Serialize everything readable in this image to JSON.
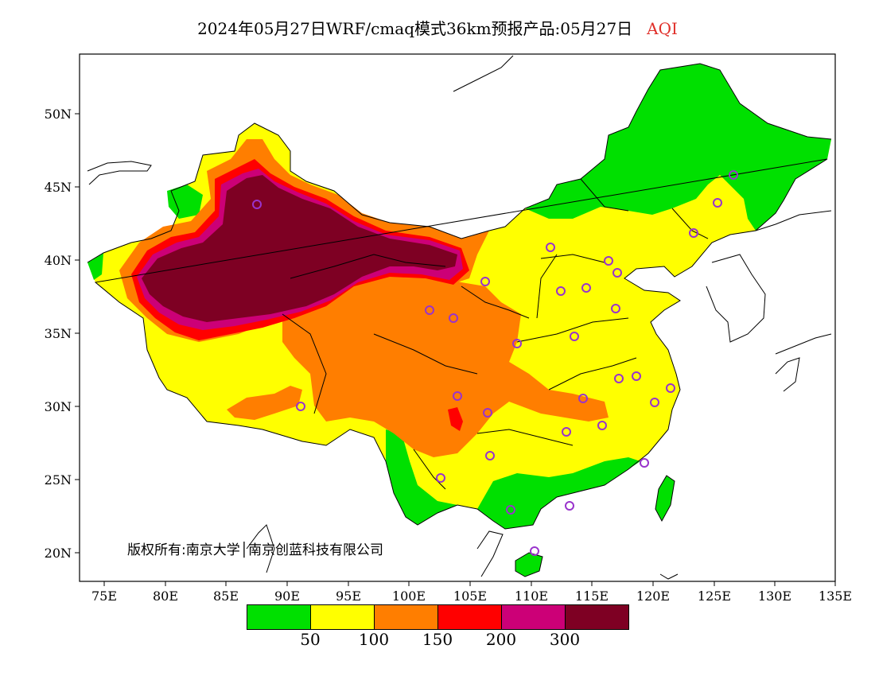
{
  "title": {
    "main": "2024年05月27日WRF/cmaq模式36km预报产品:05月27日",
    "variable": "AQI"
  },
  "copyright": "版权所有:南京大学│南京创蓝科技有限公司",
  "axes": {
    "x_ticks": [
      "75E",
      "80E",
      "85E",
      "90E",
      "95E",
      "100E",
      "105E",
      "110E",
      "115E",
      "120E",
      "125E",
      "130E",
      "135E"
    ],
    "y_ticks": [
      "50N",
      "45N",
      "40N",
      "35N",
      "30N",
      "25N",
      "20N"
    ],
    "lon_range": [
      73,
      135
    ],
    "lat_range": [
      18,
      54
    ]
  },
  "legend": {
    "colors": [
      "#00e000",
      "#ffff00",
      "#ff7e00",
      "#ff0000",
      "#cc0077",
      "#7e0023"
    ],
    "labels": [
      "50",
      "100",
      "150",
      "200",
      "300"
    ]
  },
  "map_colors": {
    "good": "#00e000",
    "moderate": "#ffff00",
    "usg": "#ff7e00",
    "unhealthy": "#ff0000",
    "very_unhealthy": "#cc0077",
    "hazardous": "#7e0023",
    "marker": "#9933cc"
  }
}
